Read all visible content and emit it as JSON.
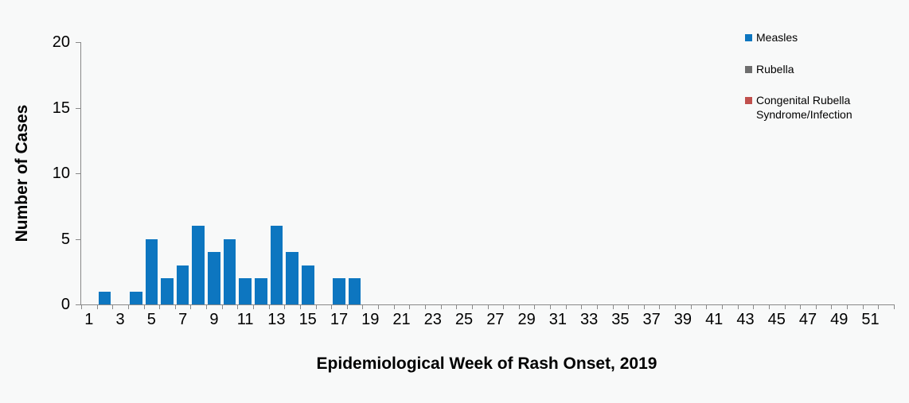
{
  "figure": {
    "background": "#f8f9f9"
  },
  "chart_data": {
    "type": "bar",
    "title": "",
    "xlabel": "Epidemiological Week of Rash Onset, 2019",
    "ylabel": "Number of Cases",
    "ylim": [
      0,
      20
    ],
    "y_ticks": [
      0,
      5,
      10,
      15,
      20
    ],
    "x_tick_labels": [
      "1",
      "3",
      "5",
      "7",
      "9",
      "11",
      "13",
      "15",
      "17",
      "19",
      "21",
      "23",
      "25",
      "27",
      "29",
      "31",
      "33",
      "35",
      "37",
      "39",
      "41",
      "43",
      "45",
      "47",
      "49",
      "51"
    ],
    "grid": false,
    "legend_position": "top-right",
    "axis_color": "#898989",
    "text_color": "#000000",
    "categories": [
      1,
      2,
      3,
      4,
      5,
      6,
      7,
      8,
      9,
      10,
      11,
      12,
      13,
      14,
      15,
      16,
      17,
      18,
      19,
      20,
      21,
      22,
      23,
      24,
      25,
      26,
      27,
      28,
      29,
      30,
      31,
      32,
      33,
      34,
      35,
      36,
      37,
      38,
      39,
      40,
      41,
      42,
      43,
      44,
      45,
      46,
      47,
      48,
      49,
      50,
      51,
      52
    ],
    "series": [
      {
        "name": "Measles",
        "color": "#0d76c0",
        "values": [
          0,
          1,
          0,
          1,
          5,
          2,
          3,
          6,
          4,
          5,
          2,
          2,
          6,
          4,
          3,
          0,
          2,
          2,
          0,
          0,
          0,
          0,
          0,
          0,
          0,
          0,
          0,
          0,
          0,
          0,
          0,
          0,
          0,
          0,
          0,
          0,
          0,
          0,
          0,
          0,
          0,
          0,
          0,
          0,
          0,
          0,
          0,
          0,
          0,
          0,
          0,
          0
        ]
      },
      {
        "name": "Rubella",
        "color": "#6e6e6e",
        "values": [
          0,
          0,
          0,
          0,
          0,
          0,
          0,
          0,
          0,
          0,
          0,
          0,
          0,
          0,
          0,
          0,
          0,
          0,
          0,
          0,
          0,
          0,
          0,
          0,
          0,
          0,
          0,
          0,
          0,
          0,
          0,
          0,
          0,
          0,
          0,
          0,
          0,
          0,
          0,
          0,
          0,
          0,
          0,
          0,
          0,
          0,
          0,
          0,
          0,
          0,
          0,
          0
        ]
      },
      {
        "name": "Congenital Rubella Syndrome/Infection",
        "color": "#c0504d",
        "values": [
          0,
          0,
          0,
          0,
          0,
          0,
          0,
          0,
          0,
          0,
          0,
          0,
          0,
          0,
          0,
          0,
          0,
          0,
          0,
          0,
          0,
          0,
          0,
          0,
          0,
          0,
          0,
          0,
          0,
          0,
          0,
          0,
          0,
          0,
          0,
          0,
          0,
          0,
          0,
          0,
          0,
          0,
          0,
          0,
          0,
          0,
          0,
          0,
          0,
          0,
          0,
          0
        ]
      }
    ]
  }
}
